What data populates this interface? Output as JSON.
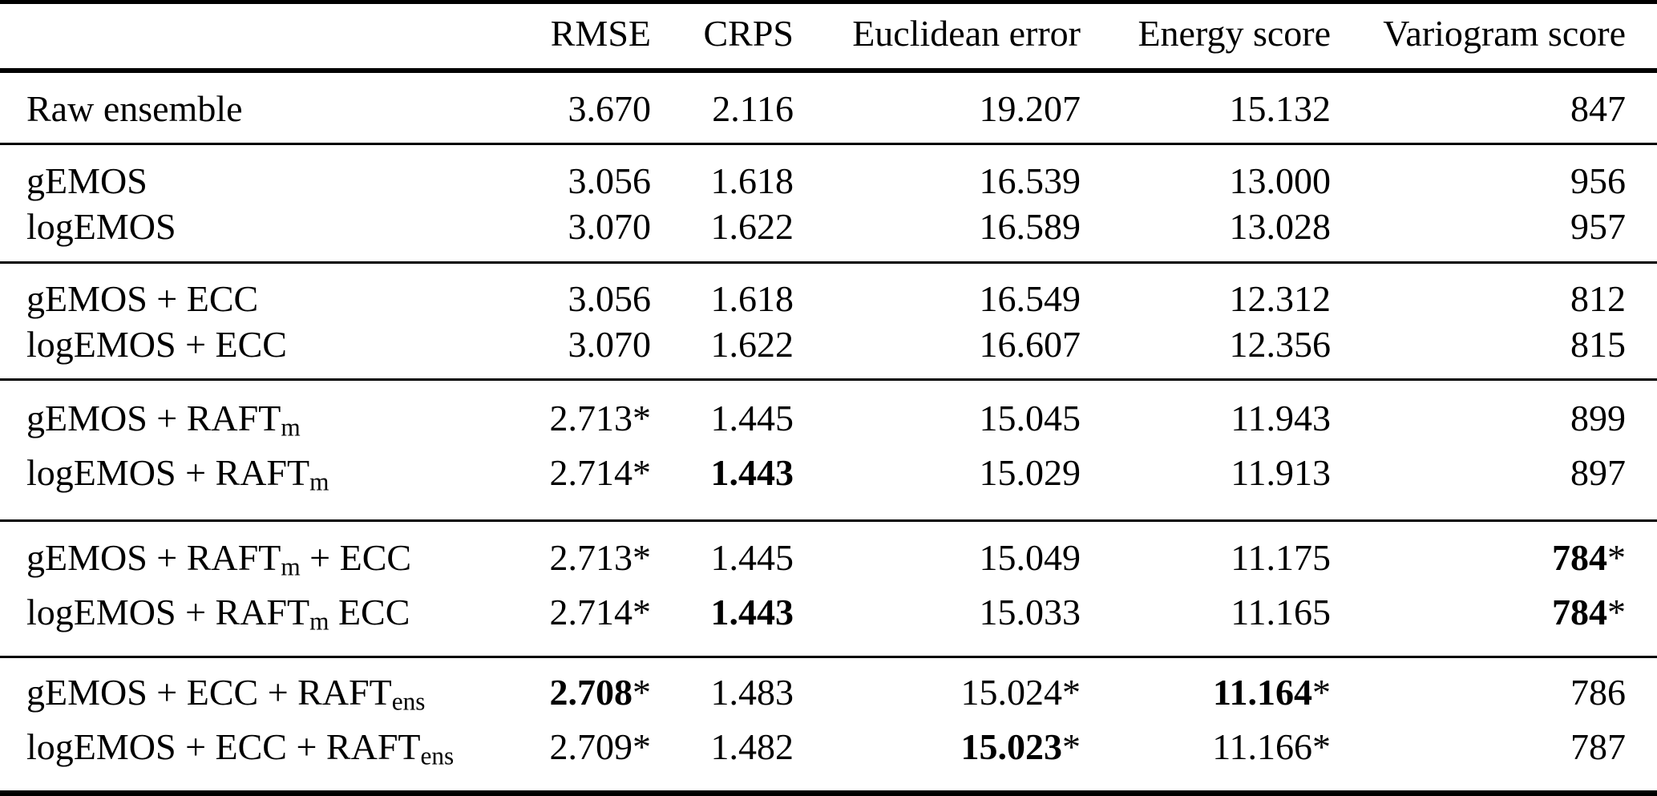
{
  "colors": {
    "text": "#000000",
    "background": "#ffffff",
    "rule": "#000000"
  },
  "table": {
    "columns": [
      "",
      "RMSE",
      "CRPS",
      "Euclidean error",
      "Energy score",
      "Variogram score"
    ],
    "sections": [
      {
        "rows": [
          {
            "label": [
              {
                "t": "Raw ensemble"
              }
            ],
            "cells": [
              {
                "v": "3.670"
              },
              {
                "v": "2.116"
              },
              {
                "v": "19.207"
              },
              {
                "v": "15.132"
              },
              {
                "v": "847"
              }
            ]
          }
        ]
      },
      {
        "rows": [
          {
            "label": [
              {
                "t": "gEMOS"
              }
            ],
            "cells": [
              {
                "v": "3.056"
              },
              {
                "v": "1.618"
              },
              {
                "v": "16.539"
              },
              {
                "v": "13.000"
              },
              {
                "v": "956"
              }
            ]
          },
          {
            "label": [
              {
                "t": "logEMOS"
              }
            ],
            "cells": [
              {
                "v": "3.070"
              },
              {
                "v": "1.622"
              },
              {
                "v": "16.589"
              },
              {
                "v": "13.028"
              },
              {
                "v": "957"
              }
            ]
          }
        ]
      },
      {
        "rows": [
          {
            "label": [
              {
                "t": "gEMOS + ECC"
              }
            ],
            "cells": [
              {
                "v": "3.056"
              },
              {
                "v": "1.618"
              },
              {
                "v": "16.549"
              },
              {
                "v": "12.312"
              },
              {
                "v": "812"
              }
            ]
          },
          {
            "label": [
              {
                "t": "logEMOS + ECC"
              }
            ],
            "cells": [
              {
                "v": "3.070"
              },
              {
                "v": "1.622"
              },
              {
                "v": "16.607"
              },
              {
                "v": "12.356"
              },
              {
                "v": "815"
              }
            ]
          }
        ]
      },
      {
        "rows": [
          {
            "label": [
              {
                "t": "gEMOS + RAFT"
              },
              {
                "t": "m",
                "sub": true
              }
            ],
            "cells": [
              {
                "v": "2.713",
                "s": true
              },
              {
                "v": "1.445"
              },
              {
                "v": "15.045"
              },
              {
                "v": "11.943"
              },
              {
                "v": "899"
              }
            ]
          },
          {
            "label": [
              {
                "t": "logEMOS + RAFT"
              },
              {
                "t": "m",
                "sub": true
              }
            ],
            "cells": [
              {
                "v": "2.714",
                "s": true
              },
              {
                "v": "1.443",
                "b": true
              },
              {
                "v": "15.029"
              },
              {
                "v": "11.913"
              },
              {
                "v": "897"
              }
            ]
          }
        ]
      },
      {
        "rows": [
          {
            "label": [
              {
                "t": "gEMOS + RAFT"
              },
              {
                "t": "m",
                "sub": true
              },
              {
                "t": " + ECC"
              }
            ],
            "cells": [
              {
                "v": "2.713",
                "s": true
              },
              {
                "v": "1.445"
              },
              {
                "v": "15.049"
              },
              {
                "v": "11.175"
              },
              {
                "v": "784",
                "b": true,
                "s": true
              }
            ]
          },
          {
            "label": [
              {
                "t": "logEMOS + RAFT"
              },
              {
                "t": "m",
                "sub": true
              },
              {
                "t": " ECC"
              }
            ],
            "cells": [
              {
                "v": "2.714",
                "s": true
              },
              {
                "v": "1.443",
                "b": true
              },
              {
                "v": "15.033"
              },
              {
                "v": "11.165"
              },
              {
                "v": "784",
                "b": true,
                "s": true
              }
            ]
          }
        ]
      },
      {
        "rows": [
          {
            "label": [
              {
                "t": "gEMOS + ECC + RAFT"
              },
              {
                "t": "ens",
                "sub": true
              }
            ],
            "cells": [
              {
                "v": "2.708",
                "b": true,
                "s": true
              },
              {
                "v": "1.483"
              },
              {
                "v": "15.024",
                "s": true
              },
              {
                "v": "11.164",
                "b": true,
                "s": true
              },
              {
                "v": "786"
              }
            ]
          },
          {
            "label": [
              {
                "t": "logEMOS + ECC + RAFT"
              },
              {
                "t": "ens",
                "sub": true
              }
            ],
            "cells": [
              {
                "v": "2.709",
                "s": true
              },
              {
                "v": "1.482"
              },
              {
                "v": "15.023",
                "b": true,
                "s": true
              },
              {
                "v": "11.166",
                "s": true
              },
              {
                "v": "787"
              }
            ]
          }
        ]
      }
    ]
  }
}
